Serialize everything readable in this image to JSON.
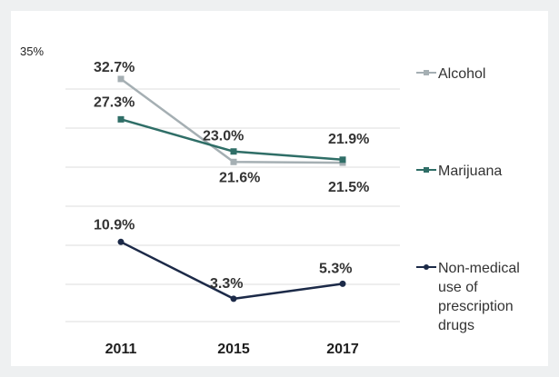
{
  "chart_data": {
    "type": "line",
    "categories": [
      "2011",
      "2015",
      "2017"
    ],
    "ytick_labels": [
      "35%"
    ],
    "ytick_values": [
      35
    ],
    "ylim": [
      0,
      35
    ],
    "grid": true,
    "legend_position": "right",
    "series": [
      {
        "name": "Alcohol",
        "legend_lines": [
          "Alcohol"
        ],
        "values": [
          32.7,
          21.6,
          21.5
        ],
        "labels": [
          "32.7%",
          "21.6%",
          "21.5%"
        ],
        "color": "#a5afb3"
      },
      {
        "name": "Marijuana",
        "legend_lines": [
          "Marijuana"
        ],
        "values": [
          27.3,
          23.0,
          21.9
        ],
        "labels": [
          "27.3%",
          "23.0%",
          "21.9%"
        ],
        "color": "#2f6e67"
      },
      {
        "name": "Non-medical use of prescription drugs",
        "legend_lines": [
          "Non-medical",
          "use of",
          "prescription",
          "drugs"
        ],
        "values": [
          10.9,
          3.3,
          5.3
        ],
        "labels": [
          "10.9%",
          "3.3%",
          "5.3%"
        ],
        "color": "#1c2a48"
      }
    ]
  }
}
